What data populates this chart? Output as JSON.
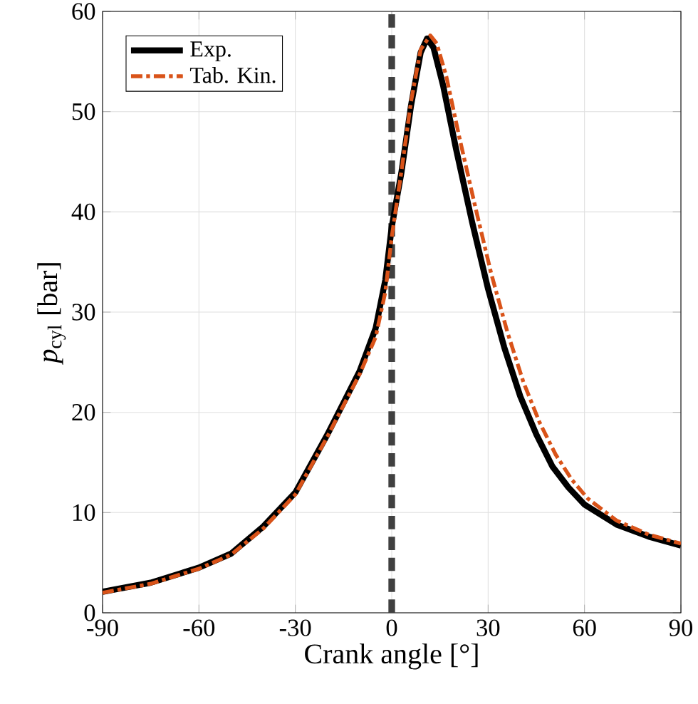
{
  "chart_data": {
    "type": "line",
    "xlabel": "Crank angle [°]",
    "ylabel": "*p*$_{cyl}$ [bar]",
    "xlim": [
      -90,
      90
    ],
    "ylim": [
      0,
      60
    ],
    "xticks": [
      -90,
      -60,
      -30,
      0,
      30,
      60,
      90
    ],
    "yticks": [
      0,
      10,
      20,
      30,
      40,
      50,
      60
    ],
    "grid": true,
    "legend": "top left",
    "ref_lines": [
      {
        "axis": "x",
        "value": 0,
        "color": "#404040",
        "line_style": "dashed"
      }
    ],
    "series": [
      {
        "name": "Exp.",
        "color": "#000000",
        "line_style": "solid",
        "x": [
          -90,
          -75,
          -60,
          -50,
          -40,
          -30,
          -20,
          -10,
          -5,
          -2,
          0,
          3,
          6,
          9,
          11,
          13,
          16,
          20,
          25,
          30,
          35,
          40,
          45,
          50,
          55,
          60,
          70,
          80,
          90
        ],
        "values": [
          2.1,
          3.0,
          4.5,
          5.9,
          8.6,
          12.0,
          17.8,
          24.1,
          28.4,
          33.2,
          38.5,
          43.9,
          50.6,
          55.9,
          57.3,
          56.4,
          52.6,
          46.3,
          39.0,
          32.3,
          26.5,
          21.6,
          17.8,
          14.6,
          12.5,
          10.8,
          8.8,
          7.6,
          6.7
        ]
      },
      {
        "name": "Tab. Kin.",
        "color": "#d95319",
        "line_style": "dashdot",
        "x": [
          -90,
          -75,
          -60,
          -50,
          -40,
          -30,
          -20,
          -10,
          -5,
          -2,
          0,
          3,
          6,
          9,
          12,
          14,
          17,
          21,
          26,
          31,
          36,
          41,
          46,
          51,
          56,
          61,
          70,
          80,
          90
        ],
        "values": [
          2.0,
          2.9,
          4.4,
          5.8,
          8.4,
          11.8,
          17.6,
          23.8,
          27.5,
          32.0,
          37.5,
          44.0,
          51.0,
          56.2,
          57.6,
          56.8,
          53.5,
          47.5,
          40.5,
          33.8,
          28.0,
          23.0,
          19.0,
          15.8,
          13.3,
          11.4,
          9.2,
          7.8,
          6.9
        ]
      }
    ]
  }
}
